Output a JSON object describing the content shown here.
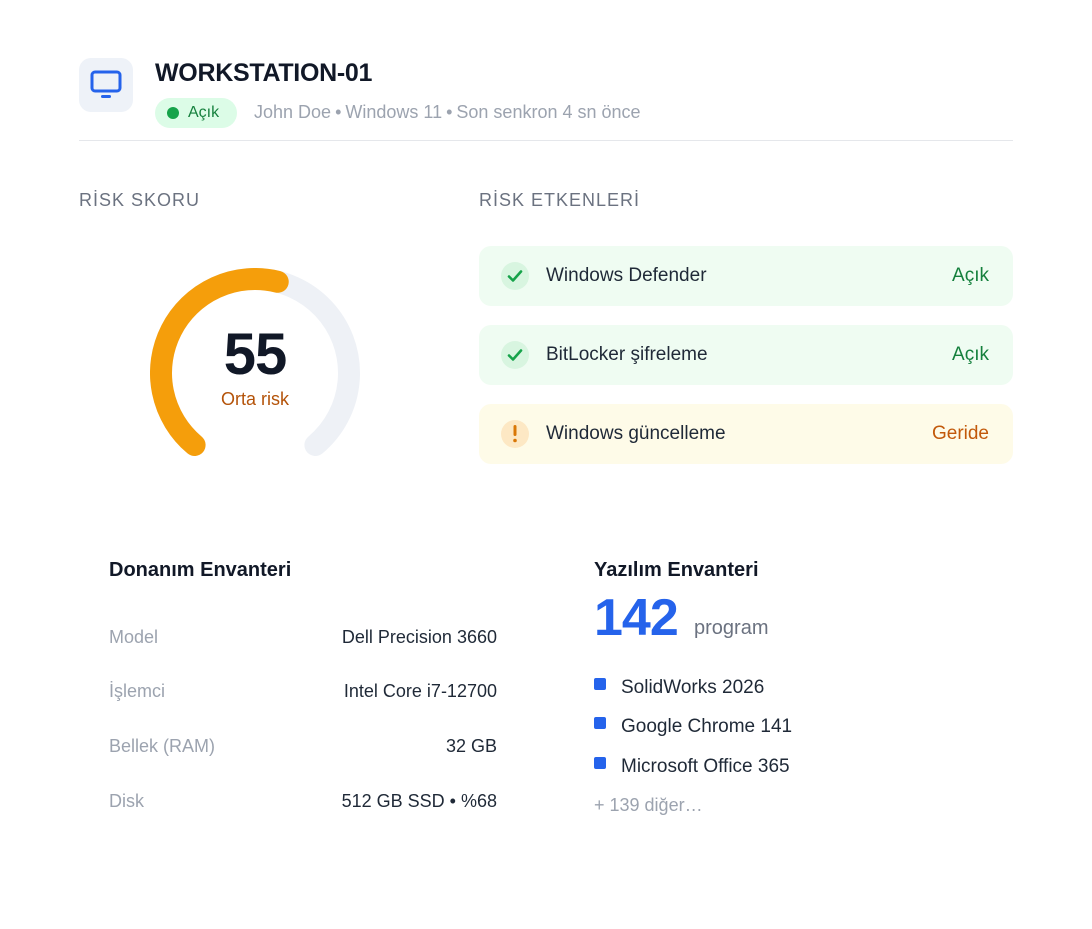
{
  "header": {
    "title": "WORKSTATION-01",
    "device_icon": "monitor-icon",
    "status": "Açık",
    "user": "John Doe",
    "os": "Windows 11",
    "sync": "Son senkron 4 sn önce",
    "separator": "•"
  },
  "risk_score": {
    "label": "RİSK SKORU",
    "value": "55",
    "score": 55,
    "max": 100,
    "level": "Orta risk",
    "color": "#f59e0b",
    "track_color": "#eef1f6"
  },
  "risk_factors": {
    "label": "RİSK ETKENLERİ",
    "items": [
      {
        "label": "Windows Defender",
        "value": "Açık",
        "state": "ok",
        "icon": "check-icon"
      },
      {
        "label": "BitLocker şifreleme",
        "value": "Açık",
        "state": "ok",
        "icon": "check-icon"
      },
      {
        "label": "Windows güncelleme",
        "value": "Geride",
        "state": "warn",
        "icon": "exclamation-icon"
      }
    ]
  },
  "hardware": {
    "title": "Donanım Envanteri",
    "rows": [
      {
        "key": "Model",
        "value": "Dell Precision 3660"
      },
      {
        "key": "İşlemci",
        "value": "Intel Core i7-12700"
      },
      {
        "key": "Bellek (RAM)",
        "value": "32 GB"
      },
      {
        "key": "Disk",
        "value": "512 GB SSD • %68"
      }
    ]
  },
  "software": {
    "title": "Yazılım Envanteri",
    "count": "142",
    "unit": "program",
    "items": [
      "SolidWorks 2026",
      "Google Chrome 141",
      "Microsoft Office 365"
    ],
    "more": "+ 139 diğer…"
  },
  "colors": {
    "accent": "#2563eb",
    "ok": "#16a34a",
    "warn": "#d97706"
  }
}
